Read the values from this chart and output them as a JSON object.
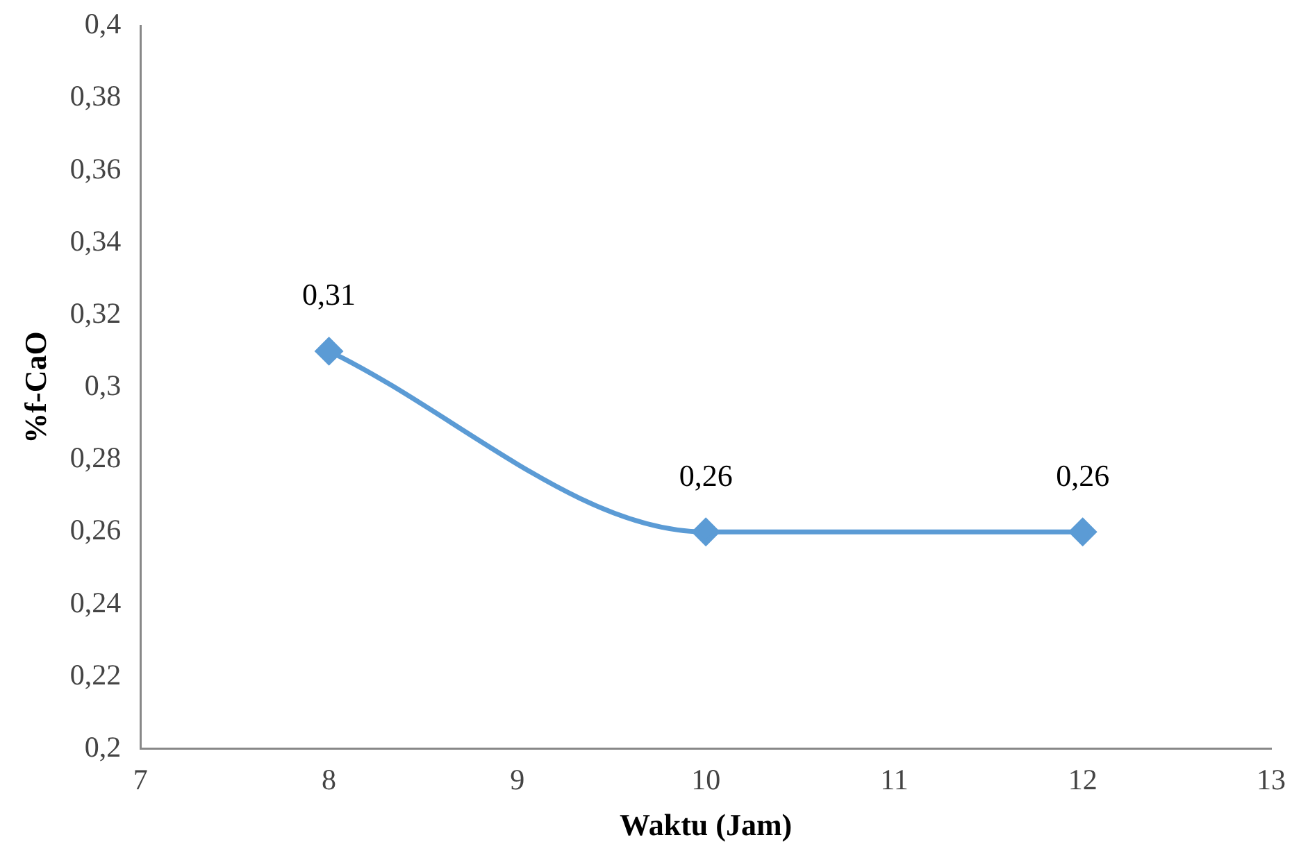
{
  "chart_data": {
    "type": "line",
    "xlabel": "Waktu (Jam)",
    "ylabel": "%f-CaO",
    "x": [
      8,
      10,
      12
    ],
    "series": [
      {
        "color": "#5b9bd5",
        "values": [
          0.31,
          0.26,
          0.26
        ],
        "value_labels": [
          "0,31",
          "0,26",
          "0,26"
        ]
      }
    ],
    "xlim": [
      7,
      13
    ],
    "xticks": [
      7,
      8,
      9,
      10,
      11,
      12,
      13
    ],
    "ylim": [
      0.2,
      0.4
    ],
    "yticks": [
      {
        "value": 0.2,
        "label": "0,2"
      },
      {
        "value": 0.22,
        "label": "0,22"
      },
      {
        "value": 0.24,
        "label": "0,24"
      },
      {
        "value": 0.26,
        "label": "0,26"
      },
      {
        "value": 0.28,
        "label": "0,28"
      },
      {
        "value": 0.3,
        "label": "0,3"
      },
      {
        "value": 0.32,
        "label": "0,32"
      },
      {
        "value": 0.34,
        "label": "0,34"
      },
      {
        "value": 0.36,
        "label": "0,36"
      },
      {
        "value": 0.38,
        "label": "0,38"
      },
      {
        "value": 0.4,
        "label": "0,4"
      }
    ],
    "grid": false,
    "legend": false,
    "marker": "diamond",
    "line_style": "solid"
  }
}
